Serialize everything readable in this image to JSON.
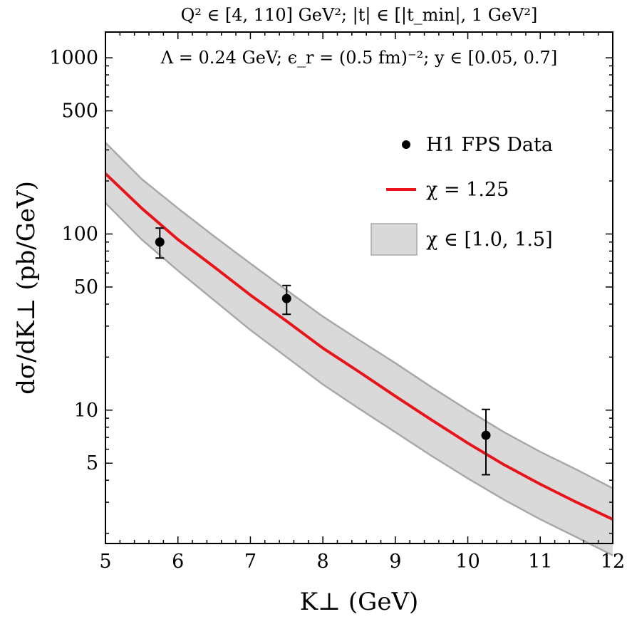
{
  "chart_data": {
    "type": "line",
    "title": "Q² ∈ [4, 110] GeV²;  |t| ∈ [|t_min|, 1 GeV²]",
    "subtitle": "Λ = 0.24 GeV;  ϵ_r = (0.5 fm)⁻²;  y ∈ [0.05, 0.7]",
    "xlabel": "K⊥ (GeV)",
    "ylabel": "dσ/dK⊥ (pb/GeV)",
    "xlim": [
      5,
      12
    ],
    "ylim": [
      1.75,
      1400
    ],
    "yscale": "log",
    "x_ticks": [
      5,
      6,
      7,
      8,
      9,
      10,
      11,
      12
    ],
    "x_tick_labels": [
      "5",
      "6",
      "7",
      "8",
      "9",
      "10",
      "11",
      "12"
    ],
    "y_ticks": [
      5,
      10,
      50,
      100,
      500,
      1000
    ],
    "y_tick_labels": [
      "5",
      "10",
      "50",
      "100",
      "500",
      "1000"
    ],
    "legend_position": "top-right",
    "legend": {
      "data_label": "H1 FPS Data",
      "line_label": "χ = 1.25",
      "band_label": "χ ∈ [1.0, 1.5]"
    },
    "colors": {
      "line": "#e8141a",
      "band_fill": "#d9d9d9",
      "band_edge": "#a8a8a8",
      "points": "#000000"
    },
    "series": [
      {
        "name": "χ = 1.25",
        "kind": "line",
        "x": [
          5,
          5.5,
          6,
          6.5,
          7,
          7.5,
          8,
          8.5,
          9,
          9.5,
          10,
          10.5,
          11,
          11.5,
          12
        ],
        "y": [
          220,
          140,
          93,
          65,
          45,
          32,
          22.5,
          16.5,
          12,
          8.8,
          6.5,
          4.9,
          3.8,
          3.0,
          2.4
        ]
      },
      {
        "name": "χ ∈ [1.0, 1.5]",
        "kind": "band",
        "x": [
          5,
          5.5,
          6,
          6.5,
          7,
          7.5,
          8,
          8.5,
          9,
          9.5,
          10,
          10.5,
          11,
          11.5,
          12
        ],
        "y_upper": [
          330,
          205,
          140,
          97,
          68,
          48,
          34,
          25,
          18.5,
          13.5,
          10,
          7.5,
          5.8,
          4.6,
          3.6
        ],
        "y_lower": [
          150,
          93,
          62,
          42,
          28.5,
          20,
          14,
          10.2,
          7.5,
          5.5,
          4.1,
          3.1,
          2.4,
          1.9,
          1.5
        ]
      },
      {
        "name": "H1 FPS Data",
        "kind": "points",
        "x": [
          5.75,
          7.5,
          10.25
        ],
        "y": [
          90,
          43,
          7.2
        ],
        "err_low": [
          73,
          35,
          4.3
        ],
        "err_high": [
          108,
          51,
          10.1
        ]
      }
    ]
  }
}
